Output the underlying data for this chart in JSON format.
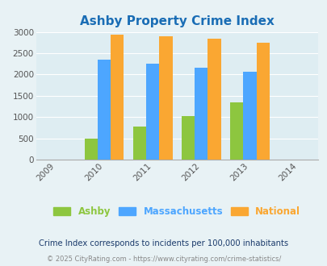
{
  "title": "Ashby Property Crime Index",
  "all_years": [
    2009,
    2010,
    2011,
    2012,
    2013,
    2014
  ],
  "data_years": [
    2010,
    2011,
    2012,
    2013
  ],
  "ashby": [
    500,
    775,
    1025,
    1350
  ],
  "massachusetts": [
    2350,
    2250,
    2150,
    2060
  ],
  "national": [
    2930,
    2900,
    2850,
    2740
  ],
  "ashby_color": "#8dc63f",
  "mass_color": "#4da6ff",
  "national_color": "#faa732",
  "background_color": "#e8f2f5",
  "plot_bg_color": "#deedf2",
  "ylim": [
    0,
    3000
  ],
  "yticks": [
    0,
    500,
    1000,
    1500,
    2000,
    2500,
    3000
  ],
  "legend_labels": [
    "Ashby",
    "Massachusetts",
    "National"
  ],
  "footnote1": "Crime Index corresponds to incidents per 100,000 inhabitants",
  "footnote2": "© 2025 CityRating.com - https://www.cityrating.com/crime-statistics/",
  "title_color": "#1a6db5",
  "footnote1_color": "#1a3a6b",
  "footnote2_color": "#888888",
  "bar_width": 0.27
}
